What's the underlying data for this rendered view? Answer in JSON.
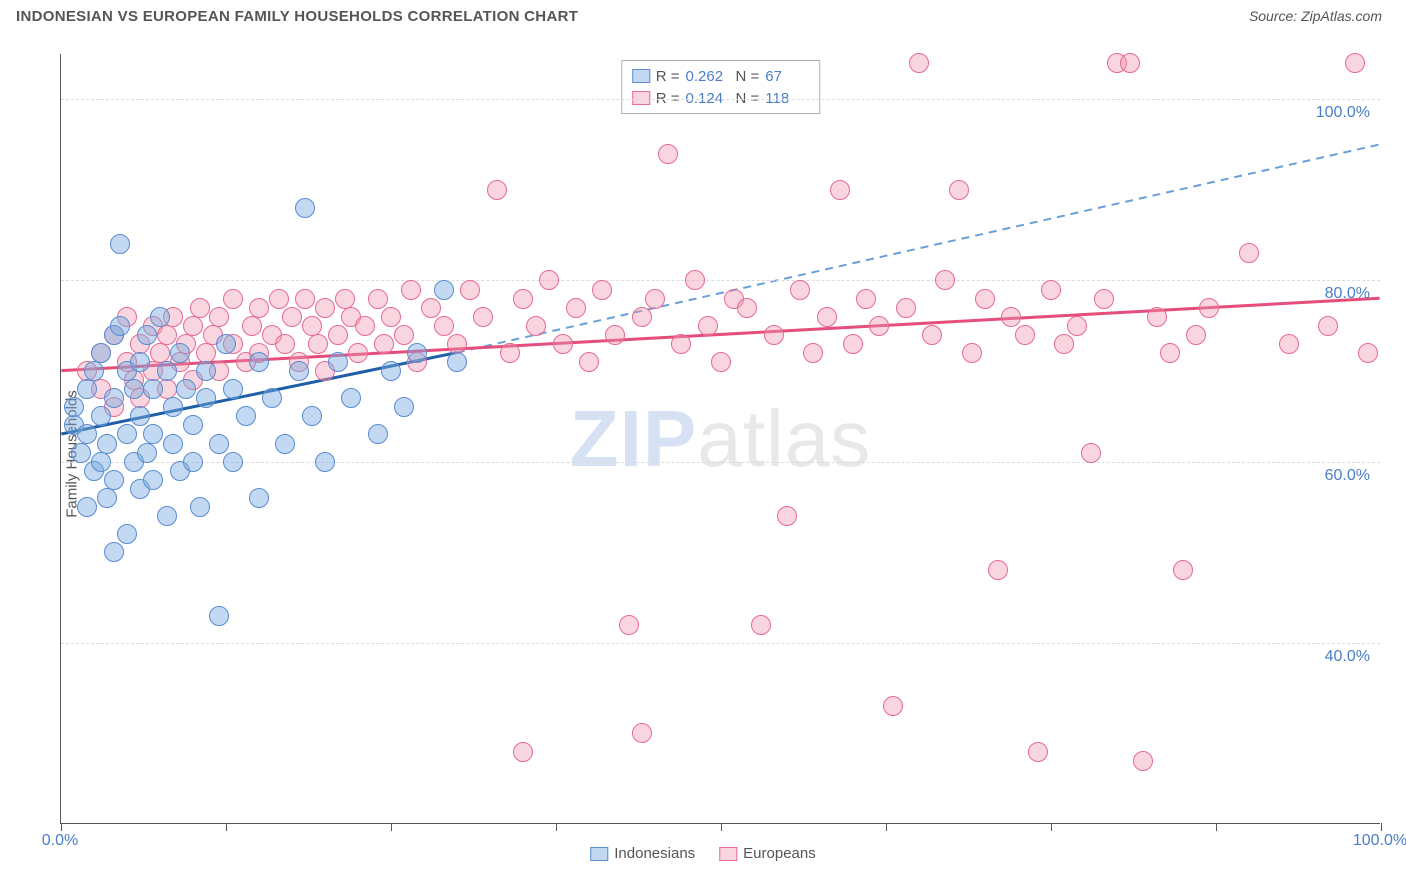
{
  "title": "INDONESIAN VS EUROPEAN FAMILY HOUSEHOLDS CORRELATION CHART",
  "source": "Source: ZipAtlas.com",
  "ylabel": "Family Households",
  "watermark_zip": "ZIP",
  "watermark_atlas": "atlas",
  "chart": {
    "type": "scatter",
    "xlim": [
      0,
      100
    ],
    "ylim": [
      20,
      105
    ],
    "y_ticks": [
      40,
      60,
      80,
      100
    ],
    "y_tick_labels": [
      "40.0%",
      "60.0%",
      "80.0%",
      "100.0%"
    ],
    "x_ticks": [
      0,
      12.5,
      25,
      37.5,
      50,
      62.5,
      75,
      87.5,
      100
    ],
    "x_minmax_labels": [
      "0.0%",
      "100.0%"
    ],
    "grid_color": "#dcdcdc",
    "axis_color": "#555555",
    "background_color": "#ffffff",
    "point_radius": 10,
    "series": [
      {
        "name": "Indonesians",
        "fill": "rgba(120,170,225,0.45)",
        "stroke": "#5a8cd2",
        "trend_color": "#1f5fa8",
        "trend_dash_color": "#6a9fd8",
        "R": "0.262",
        "N": "67",
        "trend_solid": {
          "x1": 0,
          "y1": 63,
          "x2": 30,
          "y2": 72
        },
        "trend_dash": {
          "x1": 30,
          "y1": 72,
          "x2": 100,
          "y2": 95
        },
        "points": [
          [
            1,
            64
          ],
          [
            1,
            66
          ],
          [
            1.5,
            61
          ],
          [
            2,
            63
          ],
          [
            2,
            68
          ],
          [
            2,
            55
          ],
          [
            2.5,
            70
          ],
          [
            2.5,
            59
          ],
          [
            3,
            72
          ],
          [
            3,
            65
          ],
          [
            3,
            60
          ],
          [
            3.5,
            56
          ],
          [
            3.5,
            62
          ],
          [
            4,
            74
          ],
          [
            4,
            67
          ],
          [
            4,
            58
          ],
          [
            4,
            50
          ],
          [
            4.5,
            84
          ],
          [
            4.5,
            75
          ],
          [
            5,
            63
          ],
          [
            5,
            70
          ],
          [
            5,
            52
          ],
          [
            5.5,
            60
          ],
          [
            5.5,
            68
          ],
          [
            6,
            71
          ],
          [
            6,
            65
          ],
          [
            6,
            57
          ],
          [
            6.5,
            74
          ],
          [
            6.5,
            61
          ],
          [
            7,
            68
          ],
          [
            7,
            63
          ],
          [
            7,
            58
          ],
          [
            7.5,
            76
          ],
          [
            8,
            70
          ],
          [
            8,
            54
          ],
          [
            8.5,
            66
          ],
          [
            8.5,
            62
          ],
          [
            9,
            72
          ],
          [
            9,
            59
          ],
          [
            9.5,
            68
          ],
          [
            10,
            64
          ],
          [
            10,
            60
          ],
          [
            10.5,
            55
          ],
          [
            11,
            70
          ],
          [
            11,
            67
          ],
          [
            12,
            43
          ],
          [
            12,
            62
          ],
          [
            12.5,
            73
          ],
          [
            13,
            68
          ],
          [
            13,
            60
          ],
          [
            14,
            65
          ],
          [
            15,
            71
          ],
          [
            15,
            56
          ],
          [
            16,
            67
          ],
          [
            17,
            62
          ],
          [
            18,
            70
          ],
          [
            18.5,
            88
          ],
          [
            19,
            65
          ],
          [
            20,
            60
          ],
          [
            21,
            71
          ],
          [
            22,
            67
          ],
          [
            24,
            63
          ],
          [
            25,
            70
          ],
          [
            26,
            66
          ],
          [
            27,
            72
          ],
          [
            29,
            79
          ],
          [
            30,
            71
          ]
        ]
      },
      {
        "name": "Europeans",
        "fill": "rgba(240,150,175,0.40)",
        "stroke": "#e86a92",
        "trend_color": "#e54d7b",
        "R": "0.124",
        "N": "118",
        "trend_solid": {
          "x1": 0,
          "y1": 70,
          "x2": 100,
          "y2": 78
        },
        "points": [
          [
            2,
            70
          ],
          [
            3,
            72
          ],
          [
            3,
            68
          ],
          [
            4,
            74
          ],
          [
            4,
            66
          ],
          [
            5,
            71
          ],
          [
            5,
            76
          ],
          [
            5.5,
            69
          ],
          [
            6,
            73
          ],
          [
            6,
            67
          ],
          [
            7,
            75
          ],
          [
            7,
            70
          ],
          [
            7.5,
            72
          ],
          [
            8,
            74
          ],
          [
            8,
            68
          ],
          [
            8.5,
            76
          ],
          [
            9,
            71
          ],
          [
            9.5,
            73
          ],
          [
            10,
            75
          ],
          [
            10,
            69
          ],
          [
            10.5,
            77
          ],
          [
            11,
            72
          ],
          [
            11.5,
            74
          ],
          [
            12,
            76
          ],
          [
            12,
            70
          ],
          [
            13,
            73
          ],
          [
            13,
            78
          ],
          [
            14,
            71
          ],
          [
            14.5,
            75
          ],
          [
            15,
            77
          ],
          [
            15,
            72
          ],
          [
            16,
            74
          ],
          [
            16.5,
            78
          ],
          [
            17,
            73
          ],
          [
            17.5,
            76
          ],
          [
            18,
            71
          ],
          [
            18.5,
            78
          ],
          [
            19,
            75
          ],
          [
            19.5,
            73
          ],
          [
            20,
            77
          ],
          [
            20,
            70
          ],
          [
            21,
            74
          ],
          [
            21.5,
            78
          ],
          [
            22,
            76
          ],
          [
            22.5,
            72
          ],
          [
            23,
            75
          ],
          [
            24,
            78
          ],
          [
            24.5,
            73
          ],
          [
            25,
            76
          ],
          [
            26,
            74
          ],
          [
            26.5,
            79
          ],
          [
            27,
            71
          ],
          [
            28,
            77
          ],
          [
            29,
            75
          ],
          [
            30,
            73
          ],
          [
            31,
            79
          ],
          [
            32,
            76
          ],
          [
            33,
            90
          ],
          [
            34,
            72
          ],
          [
            35,
            78
          ],
          [
            35,
            28
          ],
          [
            36,
            75
          ],
          [
            37,
            80
          ],
          [
            38,
            73
          ],
          [
            39,
            77
          ],
          [
            40,
            71
          ],
          [
            41,
            79
          ],
          [
            42,
            74
          ],
          [
            43,
            42
          ],
          [
            44,
            76
          ],
          [
            44,
            30
          ],
          [
            45,
            78
          ],
          [
            46,
            94
          ],
          [
            47,
            73
          ],
          [
            48,
            80
          ],
          [
            49,
            75
          ],
          [
            50,
            71
          ],
          [
            51,
            78
          ],
          [
            52,
            77
          ],
          [
            53,
            42
          ],
          [
            54,
            74
          ],
          [
            55,
            54
          ],
          [
            56,
            79
          ],
          [
            57,
            72
          ],
          [
            58,
            76
          ],
          [
            59,
            90
          ],
          [
            60,
            73
          ],
          [
            61,
            78
          ],
          [
            62,
            75
          ],
          [
            63,
            33
          ],
          [
            64,
            77
          ],
          [
            65,
            104
          ],
          [
            66,
            74
          ],
          [
            67,
            80
          ],
          [
            68,
            90
          ],
          [
            69,
            72
          ],
          [
            70,
            78
          ],
          [
            71,
            48
          ],
          [
            72,
            76
          ],
          [
            73,
            74
          ],
          [
            74,
            28
          ],
          [
            75,
            79
          ],
          [
            76,
            73
          ],
          [
            77,
            75
          ],
          [
            78,
            61
          ],
          [
            79,
            78
          ],
          [
            80,
            104
          ],
          [
            81,
            104
          ],
          [
            82,
            27
          ],
          [
            83,
            76
          ],
          [
            84,
            72
          ],
          [
            85,
            48
          ],
          [
            86,
            74
          ],
          [
            87,
            77
          ],
          [
            90,
            83
          ],
          [
            93,
            73
          ],
          [
            96,
            75
          ],
          [
            98,
            104
          ],
          [
            99,
            72
          ]
        ]
      }
    ]
  },
  "legend": {
    "indonesians": "Indonesians",
    "europeans": "Europeans",
    "R_label": "R =",
    "N_label": "N ="
  }
}
